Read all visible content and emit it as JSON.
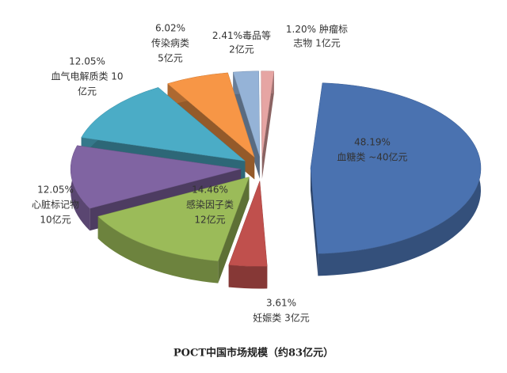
{
  "chart_data": {
    "type": "pie3d",
    "title": "POCT中国市场规模（约83亿元）",
    "categories": [
      [
        "血糖类 ~40亿元"
      ],
      [
        "妊娠类 3亿元"
      ],
      [
        "感染因子类",
        "12亿元"
      ],
      [
        "心脏标记物",
        "10亿元"
      ],
      [
        "血气电解质类 10",
        "亿元"
      ],
      [
        "传染病类",
        "5亿元"
      ],
      [
        "毒品等",
        "2亿元"
      ],
      [
        "肿瘤标",
        "志物 1亿元"
      ]
    ],
    "values": [
      48.19,
      3.61,
      14.46,
      12.05,
      12.05,
      6.02,
      2.41,
      1.2
    ],
    "value_labels": [
      "48.19%",
      "3.61%",
      "14.46%",
      "12.05%",
      "12.05%",
      "6.02%",
      "2.41%",
      "1.20%"
    ],
    "colors": [
      "#4a72b0",
      "#c0504d",
      "#9bbb59",
      "#8064a2",
      "#4bacc6",
      "#f79646",
      "#95b3d7",
      "#e6a5a3"
    ]
  }
}
